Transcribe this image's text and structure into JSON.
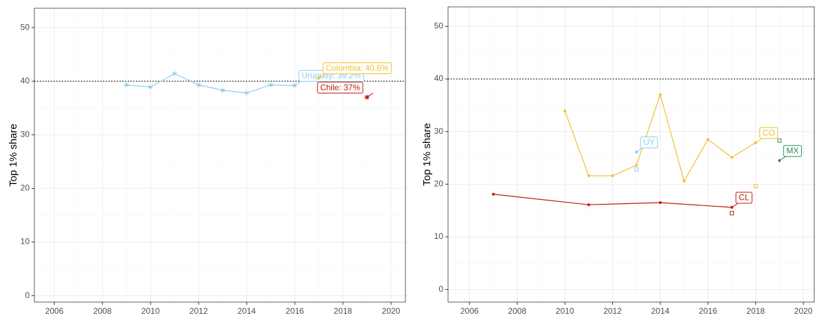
{
  "chart_data": [
    {
      "type": "line",
      "y_label": "Top 1% share",
      "xlim": [
        2005.17,
        2020.6
      ],
      "ylim": [
        -1.2,
        53.6
      ],
      "xticks": [
        2006,
        2008,
        2010,
        2012,
        2014,
        2016,
        2018,
        2020
      ],
      "yticks": [
        0,
        10,
        20,
        30,
        40,
        50
      ],
      "grid": true,
      "hline": 40,
      "series": [
        {
          "color": "#87ceeb",
          "marker": "star",
          "x": [
            2009,
            2010,
            2011,
            2012,
            2013,
            2014,
            2015,
            2016
          ],
          "values": [
            39.3,
            38.9,
            41.4,
            39.3,
            38.3,
            37.8,
            39.3,
            39.2
          ],
          "label": "Uruguay: 39.2%"
        },
        {
          "color": "#f0c030",
          "marker": "circle",
          "x": [
            2017
          ],
          "values": [
            40.6
          ],
          "label": "Colombia: 40.6%"
        },
        {
          "color": "#c0180c",
          "marker": "asterisk",
          "x": [
            2019
          ],
          "values": [
            37
          ],
          "label": "Chile: 37%"
        }
      ]
    },
    {
      "type": "line",
      "y_label": "Top 1% share",
      "xlim": [
        2005.1,
        2020.46
      ],
      "ylim": [
        -2.4,
        53.7
      ],
      "xticks": [
        2006,
        2008,
        2010,
        2012,
        2014,
        2016,
        2018,
        2020
      ],
      "yticks": [
        0,
        10,
        20,
        30,
        40,
        50
      ],
      "grid": true,
      "hline": 40,
      "series": [
        {
          "color": "#f0c030",
          "marker": "circle",
          "x": [
            2010,
            2011,
            2012,
            2013,
            2014,
            2015,
            2016,
            2017,
            2018
          ],
          "values": [
            33.9,
            21.6,
            21.6,
            23.6,
            37.0,
            20.6,
            28.5,
            25.1,
            27.9
          ],
          "label": "CO"
        },
        {
          "color": "#87ceeb",
          "marker": "circle",
          "x": [
            2013
          ],
          "values": [
            26.1
          ],
          "label": "UY"
        },
        {
          "color": "#c0180c",
          "marker": "circle",
          "x": [
            2007,
            2011,
            2014,
            2017
          ],
          "values": [
            18.1,
            16.1,
            16.5,
            15.6
          ],
          "label": "CL"
        },
        {
          "color": "#2e8b57",
          "marker": "circle",
          "x": [
            2019
          ],
          "values": [
            24.5
          ],
          "label": "MX"
        },
        {
          "color": "#87ceeb",
          "marker": "square",
          "x": [
            2013
          ],
          "values": [
            22.8
          ]
        },
        {
          "color": "#f0c030",
          "marker": "square",
          "x": [
            2018
          ],
          "values": [
            19.6
          ]
        },
        {
          "color": "#c0180c",
          "marker": "square",
          "x": [
            2017
          ],
          "values": [
            14.5
          ]
        },
        {
          "color": "#2e8b57",
          "marker": "square",
          "x": [
            2019
          ],
          "values": [
            28.3
          ]
        }
      ]
    }
  ]
}
